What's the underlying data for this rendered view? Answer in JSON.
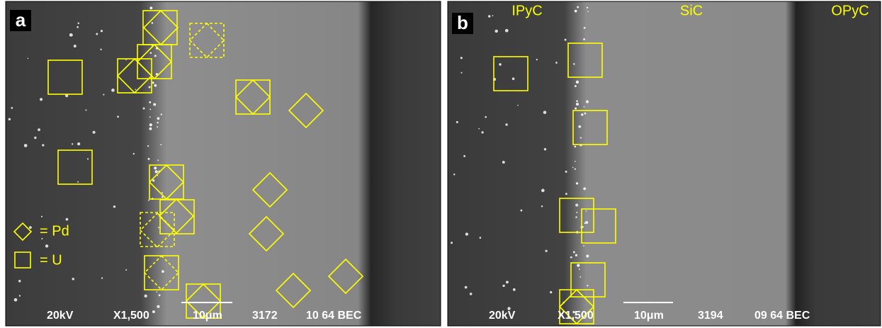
{
  "panels": [
    {
      "label": "a",
      "legend": {
        "pd": "= Pd",
        "u": "= U"
      },
      "info": [
        "20kV",
        "X1,500",
        "10μm",
        "3172",
        "10 64 BEC"
      ]
    },
    {
      "label": "b",
      "layers": [
        "IPyC",
        "SiC",
        "OPyC"
      ],
      "info": [
        "20kV",
        "X1,500",
        "10μm",
        "3194",
        "09 64 BEC"
      ]
    }
  ]
}
